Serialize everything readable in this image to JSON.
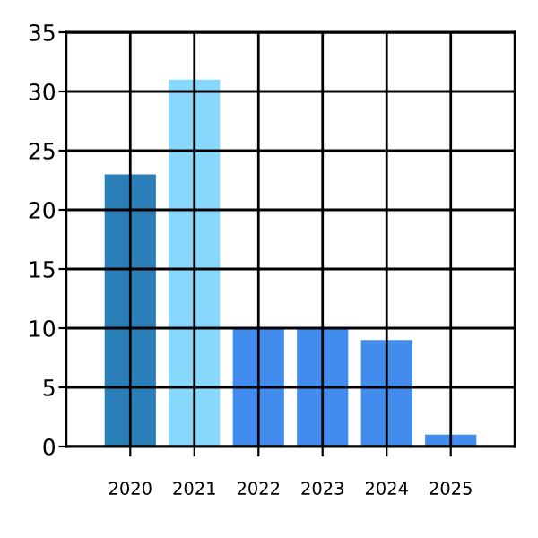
{
  "chart_data": {
    "type": "bar",
    "categories": [
      "2020",
      "2021",
      "2022",
      "2023",
      "2024",
      "2025"
    ],
    "values": [
      23,
      31,
      10,
      10,
      9,
      1
    ],
    "colors": [
      "#2a7fb8",
      "#88d8fe",
      "#428ced",
      "#428ced",
      "#428ced",
      "#428ced"
    ],
    "ylim": [
      0,
      35
    ],
    "yticks": [
      0,
      5,
      10,
      15,
      20,
      25,
      30,
      35
    ],
    "grid": true
  }
}
